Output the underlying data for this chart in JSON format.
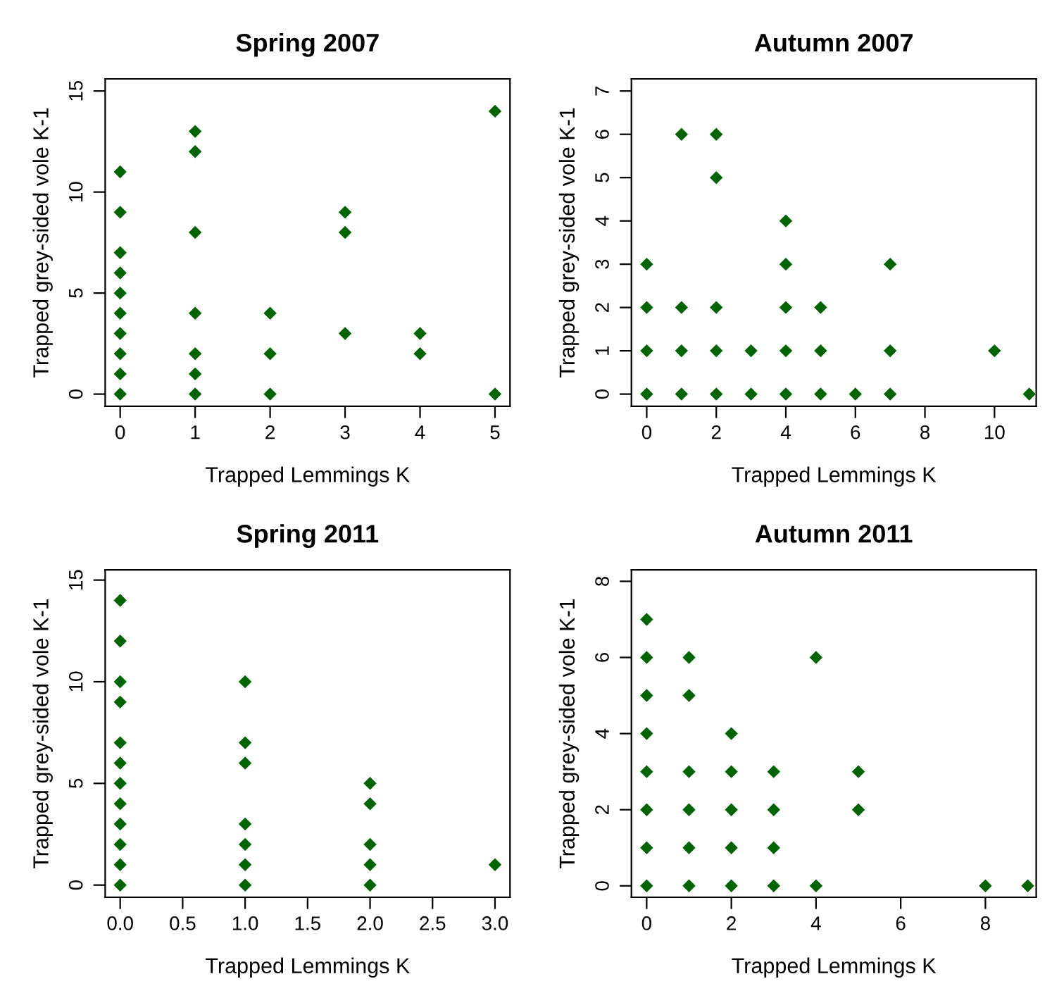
{
  "chart_data": [
    {
      "type": "scatter",
      "title": "Spring 2007",
      "xlabel": "Trapped Lemmings K",
      "ylabel": "Trapped grey-sided vole K-1",
      "marker": "diamond",
      "grid": false,
      "legend": false,
      "xlim": [
        -0.2,
        5.2
      ],
      "ylim": [
        -0.6,
        15.6
      ],
      "xticks": [
        0,
        1,
        2,
        3,
        4,
        5
      ],
      "yticks": [
        0,
        5,
        10,
        15
      ],
      "series": [
        {
          "color": "#006400",
          "x": [
            0,
            0,
            0,
            0,
            0,
            0,
            0,
            0,
            0,
            0,
            1,
            1,
            1,
            1,
            1,
            1,
            1,
            2,
            2,
            2,
            3,
            3,
            3,
            4,
            4,
            5,
            5
          ],
          "values": [
            0,
            1,
            2,
            3,
            4,
            5,
            6,
            7,
            9,
            11,
            0,
            1,
            2,
            4,
            8,
            12,
            13,
            0,
            2,
            4,
            3,
            8,
            9,
            2,
            3,
            0,
            14
          ]
        }
      ]
    },
    {
      "type": "scatter",
      "title": "Autumn 2007",
      "xlabel": "Trapped Lemmings K",
      "ylabel": "Trapped grey-sided vole K-1",
      "marker": "diamond",
      "grid": false,
      "legend": false,
      "xlim": [
        -0.44,
        11.2
      ],
      "ylim": [
        -0.28,
        7.28
      ],
      "xticks": [
        0,
        2,
        4,
        6,
        8,
        10
      ],
      "yticks": [
        0,
        1,
        2,
        3,
        4,
        5,
        6,
        7
      ],
      "series": [
        {
          "color": "#006400",
          "x": [
            0,
            0,
            0,
            0,
            1,
            1,
            1,
            1,
            2,
            2,
            2,
            2,
            2,
            3,
            3,
            4,
            4,
            4,
            4,
            4,
            5,
            5,
            5,
            6,
            7,
            7,
            7,
            10,
            11
          ],
          "values": [
            0,
            1,
            2,
            3,
            0,
            1,
            2,
            6,
            0,
            1,
            2,
            5,
            6,
            0,
            1,
            0,
            1,
            2,
            3,
            4,
            0,
            1,
            2,
            0,
            0,
            1,
            3,
            1,
            0
          ]
        }
      ]
    },
    {
      "type": "scatter",
      "title": "Spring 2011",
      "xlabel": "Trapped Lemmings K",
      "ylabel": "Trapped grey-sided vole K-1",
      "marker": "diamond",
      "grid": false,
      "legend": false,
      "xlim": [
        -0.12,
        3.12
      ],
      "ylim": [
        -0.6,
        15.5
      ],
      "xticks": [
        {
          "value": 0,
          "label": "0.0"
        },
        0.5,
        {
          "value": 1,
          "label": "1.0"
        },
        1.5,
        {
          "value": 2,
          "label": "2.0"
        },
        2.5,
        {
          "value": 3,
          "label": "3.0"
        }
      ],
      "yticks": [
        0,
        5,
        10,
        15
      ],
      "series": [
        {
          "color": "#006400",
          "x": [
            0,
            0,
            0,
            0,
            0,
            0,
            0,
            0,
            0,
            0,
            0,
            0,
            1,
            1,
            1,
            1,
            1,
            1,
            1,
            2,
            2,
            2,
            2,
            2,
            3
          ],
          "values": [
            0,
            1,
            2,
            3,
            4,
            5,
            6,
            7,
            9,
            10,
            12,
            14,
            0,
            1,
            2,
            3,
            6,
            7,
            10,
            0,
            1,
            2,
            4,
            5,
            1
          ]
        }
      ]
    },
    {
      "type": "scatter",
      "title": "Autumn 2011",
      "xlabel": "Trapped Lemmings K",
      "ylabel": "Trapped grey-sided vole K-1",
      "marker": "diamond",
      "grid": false,
      "legend": false,
      "xlim": [
        -0.36,
        9.2
      ],
      "ylim": [
        -0.3,
        8.3
      ],
      "xticks": [
        0,
        2,
        4,
        6,
        8
      ],
      "yticks": [
        0,
        2,
        4,
        6,
        8
      ],
      "series": [
        {
          "color": "#006400",
          "x": [
            0,
            0,
            0,
            0,
            0,
            0,
            0,
            0,
            1,
            1,
            1,
            1,
            1,
            1,
            2,
            2,
            2,
            2,
            2,
            3,
            3,
            3,
            3,
            4,
            4,
            5,
            5,
            8,
            9
          ],
          "values": [
            0,
            1,
            2,
            3,
            4,
            5,
            6,
            7,
            0,
            1,
            2,
            3,
            5,
            6,
            0,
            1,
            2,
            3,
            4,
            0,
            1,
            2,
            3,
            0,
            6,
            2,
            3,
            0,
            0
          ]
        }
      ]
    }
  ]
}
